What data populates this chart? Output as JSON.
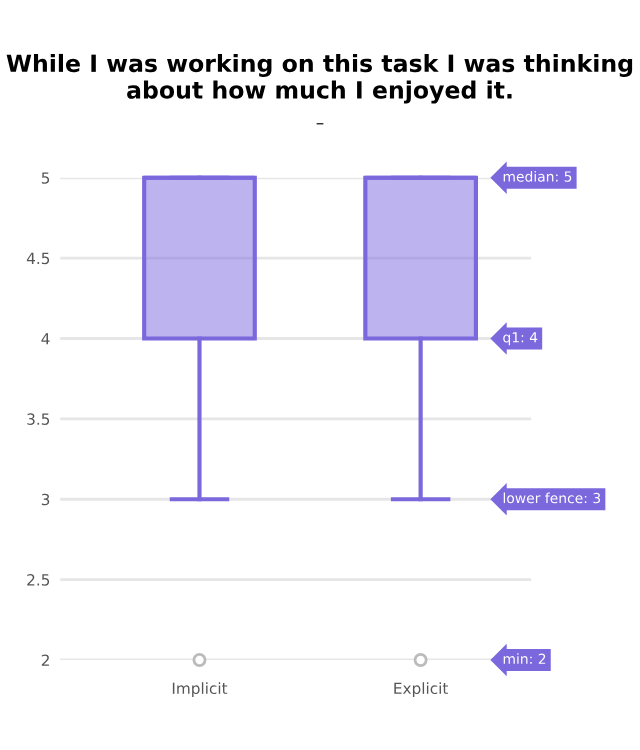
{
  "chart_data": {
    "type": "box",
    "title": "While I was working on this task I was thinking about how much I enjoyed it.",
    "subtitle": "–",
    "categories": [
      "Implicit",
      "Explicit"
    ],
    "boxes": [
      {
        "low": 3,
        "q1": 4,
        "median": 5,
        "q3": 5,
        "high": 5,
        "outliers": [
          2
        ]
      },
      {
        "low": 3,
        "q1": 4,
        "median": 5,
        "q3": 5,
        "high": 5,
        "outliers": [
          2
        ]
      }
    ],
    "color": "#7b68dd",
    "ylim": [
      2,
      5
    ],
    "yticks": [
      2,
      2.5,
      3,
      3.5,
      4,
      4.5,
      5
    ],
    "grid": "y",
    "legend": false,
    "annotations": [
      "median: 5",
      "q1: 4",
      "lower fence: 3",
      "min: 2"
    ]
  }
}
